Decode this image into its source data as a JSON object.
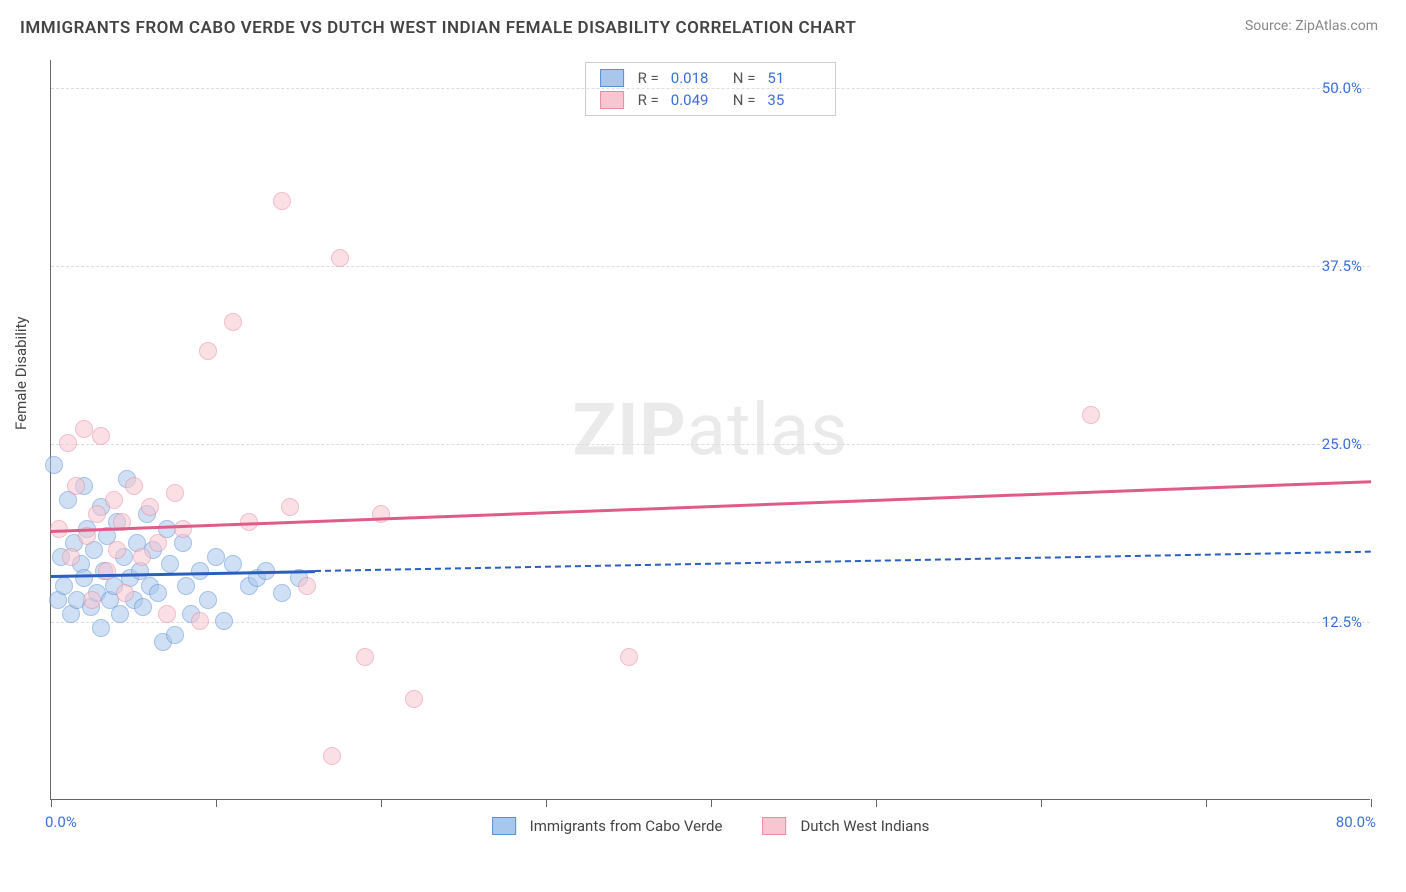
{
  "title": "IMMIGRANTS FROM CABO VERDE VS DUTCH WEST INDIAN FEMALE DISABILITY CORRELATION CHART",
  "source": "Source: ZipAtlas.com",
  "watermark_zip": "ZIP",
  "watermark_atlas": "atlas",
  "yaxis_label": "Female Disability",
  "chart": {
    "type": "scatter",
    "xlim": [
      0,
      80
    ],
    "ylim": [
      0,
      52
    ],
    "yticks": [
      12.5,
      25.0,
      37.5,
      50.0
    ],
    "ytick_labels": [
      "12.5%",
      "25.0%",
      "37.5%",
      "50.0%"
    ],
    "xticks": [
      0,
      10,
      20,
      30,
      40,
      50,
      60,
      70,
      80
    ],
    "xaxis_min_label": "0.0%",
    "xaxis_max_label": "80.0%",
    "background": "#ffffff",
    "grid_color": "#dddddd",
    "axis_color": "#666666",
    "tick_label_color": "#3b6fd8",
    "point_radius": 9,
    "point_opacity": 0.55,
    "series": [
      {
        "name": "Immigrants from Cabo Verde",
        "fill": "#a9c7ec",
        "stroke": "#5b8fd6",
        "regression": {
          "y_at_x0": 15.8,
          "y_at_x80": 17.5,
          "solid_until_x": 16,
          "stroke": "#2a5fc0"
        },
        "R": "0.018",
        "N": "51",
        "points": [
          [
            0.2,
            23.5
          ],
          [
            0.4,
            14.0
          ],
          [
            0.6,
            17.0
          ],
          [
            0.8,
            15.0
          ],
          [
            1.0,
            21.0
          ],
          [
            1.2,
            13.0
          ],
          [
            1.4,
            18.0
          ],
          [
            1.6,
            14.0
          ],
          [
            1.8,
            16.5
          ],
          [
            2.0,
            22.0
          ],
          [
            2.0,
            15.5
          ],
          [
            2.2,
            19.0
          ],
          [
            2.4,
            13.5
          ],
          [
            2.6,
            17.5
          ],
          [
            2.8,
            14.5
          ],
          [
            3.0,
            20.5
          ],
          [
            3.0,
            12.0
          ],
          [
            3.2,
            16.0
          ],
          [
            3.4,
            18.5
          ],
          [
            3.6,
            14.0
          ],
          [
            3.8,
            15.0
          ],
          [
            4.0,
            19.5
          ],
          [
            4.2,
            13.0
          ],
          [
            4.4,
            17.0
          ],
          [
            4.6,
            22.5
          ],
          [
            4.8,
            15.5
          ],
          [
            5.0,
            14.0
          ],
          [
            5.2,
            18.0
          ],
          [
            5.4,
            16.0
          ],
          [
            5.6,
            13.5
          ],
          [
            5.8,
            20.0
          ],
          [
            6.0,
            15.0
          ],
          [
            6.2,
            17.5
          ],
          [
            6.5,
            14.5
          ],
          [
            6.8,
            11.0
          ],
          [
            7.0,
            19.0
          ],
          [
            7.2,
            16.5
          ],
          [
            7.5,
            11.5
          ],
          [
            8.0,
            18.0
          ],
          [
            8.2,
            15.0
          ],
          [
            8.5,
            13.0
          ],
          [
            9.0,
            16.0
          ],
          [
            9.5,
            14.0
          ],
          [
            10.0,
            17.0
          ],
          [
            10.5,
            12.5
          ],
          [
            11.0,
            16.5
          ],
          [
            12.0,
            15.0
          ],
          [
            12.5,
            15.5
          ],
          [
            13.0,
            16.0
          ],
          [
            14.0,
            14.5
          ],
          [
            15.0,
            15.5
          ]
        ]
      },
      {
        "name": "Dutch West Indians",
        "fill": "#f7c6d0",
        "stroke": "#e88ba3",
        "regression": {
          "y_at_x0": 19.0,
          "y_at_x80": 22.5,
          "solid_until_x": 80,
          "stroke": "#e05a8a"
        },
        "R": "0.049",
        "N": "35",
        "points": [
          [
            0.5,
            19.0
          ],
          [
            1.0,
            25.0
          ],
          [
            1.2,
            17.0
          ],
          [
            1.5,
            22.0
          ],
          [
            2.0,
            26.0
          ],
          [
            2.2,
            18.5
          ],
          [
            2.5,
            14.0
          ],
          [
            2.8,
            20.0
          ],
          [
            3.0,
            25.5
          ],
          [
            3.4,
            16.0
          ],
          [
            3.8,
            21.0
          ],
          [
            4.0,
            17.5
          ],
          [
            4.3,
            19.5
          ],
          [
            4.5,
            14.5
          ],
          [
            5.0,
            22.0
          ],
          [
            5.5,
            17.0
          ],
          [
            6.0,
            20.5
          ],
          [
            6.5,
            18.0
          ],
          [
            7.0,
            13.0
          ],
          [
            7.5,
            21.5
          ],
          [
            8.0,
            19.0
          ],
          [
            9.0,
            12.5
          ],
          [
            9.5,
            31.5
          ],
          [
            11.0,
            33.5
          ],
          [
            12.0,
            19.5
          ],
          [
            14.0,
            42.0
          ],
          [
            15.5,
            15.0
          ],
          [
            17.0,
            3.0
          ],
          [
            17.5,
            38.0
          ],
          [
            19.0,
            10.0
          ],
          [
            20.0,
            20.0
          ],
          [
            22.0,
            7.0
          ],
          [
            35.0,
            10.0
          ],
          [
            63.0,
            27.0
          ],
          [
            14.5,
            20.5
          ]
        ]
      }
    ]
  },
  "legend_top": {
    "r_label": "R  =",
    "n_label": "N  ="
  },
  "legend_bottom": [
    {
      "label": "Immigrants from Cabo Verde",
      "fill": "#a9c7ec",
      "stroke": "#5b8fd6"
    },
    {
      "label": "Dutch West Indians",
      "fill": "#f7c6d0",
      "stroke": "#e88ba3"
    }
  ]
}
